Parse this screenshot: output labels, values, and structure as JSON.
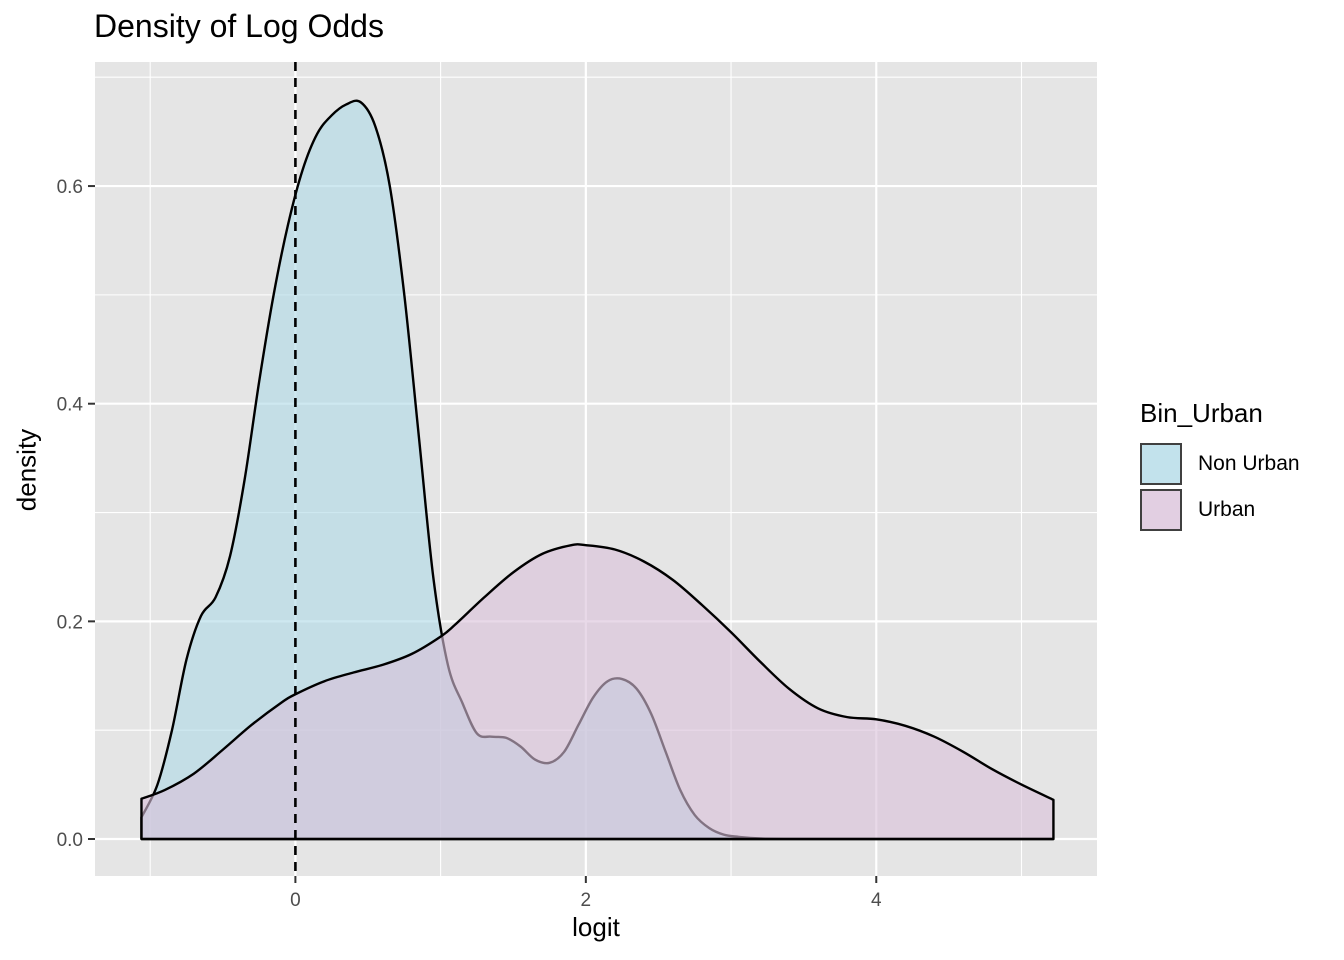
{
  "chart_data": {
    "type": "area",
    "title": "Density of Log Odds",
    "xlabel": "logit",
    "ylabel": "density",
    "xlim": [
      -1.38,
      5.52
    ],
    "ylim": [
      -0.034,
      0.714
    ],
    "x_ticks": [
      0,
      2,
      4
    ],
    "y_ticks": [
      0.0,
      0.2,
      0.4,
      0.6
    ],
    "y_tick_labels": [
      "0.0",
      "0.2",
      "0.4",
      "0.6"
    ],
    "reference_line": {
      "x": 0,
      "style": "dashed"
    },
    "grid": true,
    "legend": {
      "title": "Bin_Urban",
      "position": "right"
    },
    "colors": {
      "panel": "#e5e5e5",
      "grid": "#ffffff",
      "Non Urban": "#add8e6",
      "Urban": "#d8bfd8"
    },
    "series": [
      {
        "name": "Non Urban",
        "x": [
          -1.06,
          -0.95,
          -0.85,
          -0.75,
          -0.65,
          -0.55,
          -0.45,
          -0.35,
          -0.25,
          -0.15,
          -0.05,
          0.05,
          0.15,
          0.25,
          0.35,
          0.45,
          0.55,
          0.65,
          0.75,
          0.85,
          0.95,
          1.05,
          1.15,
          1.25,
          1.35,
          1.45,
          1.55,
          1.65,
          1.75,
          1.85,
          1.95,
          2.05,
          2.15,
          2.25,
          2.35,
          2.45,
          2.55,
          2.65,
          2.75,
          2.85,
          2.95,
          3.05,
          3.2,
          3.5,
          4.0,
          4.5,
          5.22
        ],
        "y": [
          0.02,
          0.05,
          0.1,
          0.165,
          0.205,
          0.222,
          0.26,
          0.33,
          0.42,
          0.5,
          0.565,
          0.615,
          0.648,
          0.665,
          0.675,
          0.677,
          0.655,
          0.6,
          0.5,
          0.37,
          0.24,
          0.16,
          0.125,
          0.097,
          0.094,
          0.093,
          0.085,
          0.073,
          0.07,
          0.08,
          0.105,
          0.13,
          0.145,
          0.147,
          0.138,
          0.115,
          0.08,
          0.045,
          0.022,
          0.01,
          0.004,
          0.002,
          0.0005,
          0.0,
          0.0,
          0.0,
          0.0
        ]
      },
      {
        "name": "Urban",
        "x": [
          -1.06,
          -0.9,
          -0.7,
          -0.5,
          -0.3,
          -0.1,
          0.0,
          0.2,
          0.4,
          0.6,
          0.8,
          1.0,
          1.1,
          1.3,
          1.5,
          1.7,
          1.9,
          2.0,
          2.2,
          2.4,
          2.6,
          2.8,
          3.0,
          3.2,
          3.4,
          3.6,
          3.8,
          4.0,
          4.2,
          4.4,
          4.6,
          4.8,
          5.0,
          5.22
        ],
        "y": [
          0.037,
          0.045,
          0.06,
          0.082,
          0.105,
          0.125,
          0.133,
          0.145,
          0.153,
          0.16,
          0.17,
          0.186,
          0.197,
          0.222,
          0.245,
          0.262,
          0.27,
          0.27,
          0.266,
          0.255,
          0.238,
          0.215,
          0.19,
          0.163,
          0.138,
          0.12,
          0.112,
          0.11,
          0.104,
          0.094,
          0.08,
          0.064,
          0.05,
          0.036
        ]
      }
    ]
  }
}
